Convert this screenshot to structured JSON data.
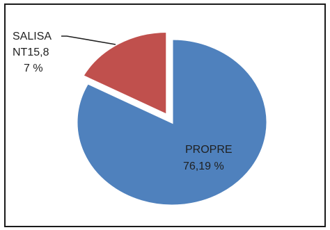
{
  "chart_data": {
    "type": "pie",
    "title": "",
    "slices": [
      {
        "name": "PROPRE",
        "value": 76.19,
        "label_lines": [
          "PROPRE",
          "76,19 %"
        ],
        "color": "#4f81bd",
        "exploded": false
      },
      {
        "name": "SALISANT",
        "value": 15.87,
        "label_lines": [
          "SALISA",
          "NT15,8",
          "7 %"
        ],
        "color": "#c0504d",
        "exploded": true
      }
    ],
    "legend": "none"
  }
}
